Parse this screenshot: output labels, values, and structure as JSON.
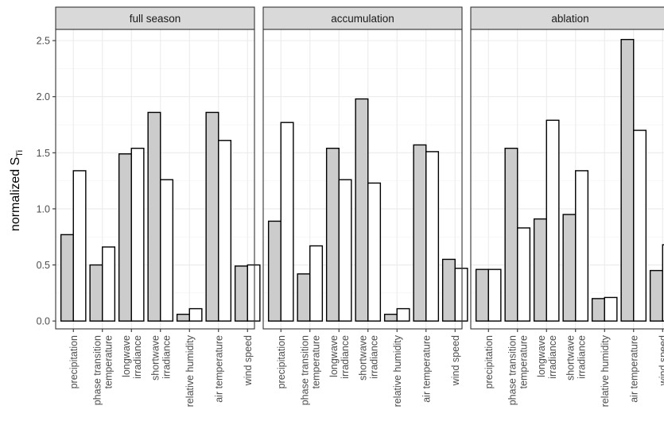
{
  "chart_data": {
    "type": "bar",
    "ylabel": "normalized S",
    "ylabel_subscript": "Ti",
    "ylim": [
      -0.07,
      2.6
    ],
    "yticks": [
      "0.0",
      "0.5",
      "1.0",
      "1.5",
      "2.0",
      "2.5"
    ],
    "grid": true,
    "categories": [
      [
        "precipitation"
      ],
      [
        "phase transition",
        "temperature"
      ],
      [
        "longwave",
        "irradiance"
      ],
      [
        "shortwave",
        "irradiance"
      ],
      [
        "relative humidity"
      ],
      [
        "air temperature"
      ],
      [
        "wind speed"
      ]
    ],
    "series_colors": [
      "#cccccc",
      "#ffffff"
    ],
    "panels": [
      {
        "title": "full season",
        "series": [
          {
            "values": [
              0.77,
              0.5,
              1.49,
              1.86,
              0.06,
              1.86,
              0.49
            ]
          },
          {
            "values": [
              1.34,
              0.66,
              1.54,
              1.26,
              0.11,
              1.61,
              0.5
            ]
          }
        ]
      },
      {
        "title": "accumulation",
        "series": [
          {
            "values": [
              0.89,
              0.42,
              1.54,
              1.98,
              0.06,
              1.57,
              0.55
            ]
          },
          {
            "values": [
              1.77,
              0.67,
              1.26,
              1.23,
              0.11,
              1.51,
              0.47
            ]
          }
        ]
      },
      {
        "title": "ablation",
        "series": [
          {
            "values": [
              0.46,
              1.54,
              0.91,
              0.95,
              0.2,
              2.51,
              0.45
            ]
          },
          {
            "values": [
              0.46,
              0.83,
              1.79,
              1.34,
              0.21,
              1.7,
              0.68
            ]
          }
        ]
      }
    ]
  }
}
